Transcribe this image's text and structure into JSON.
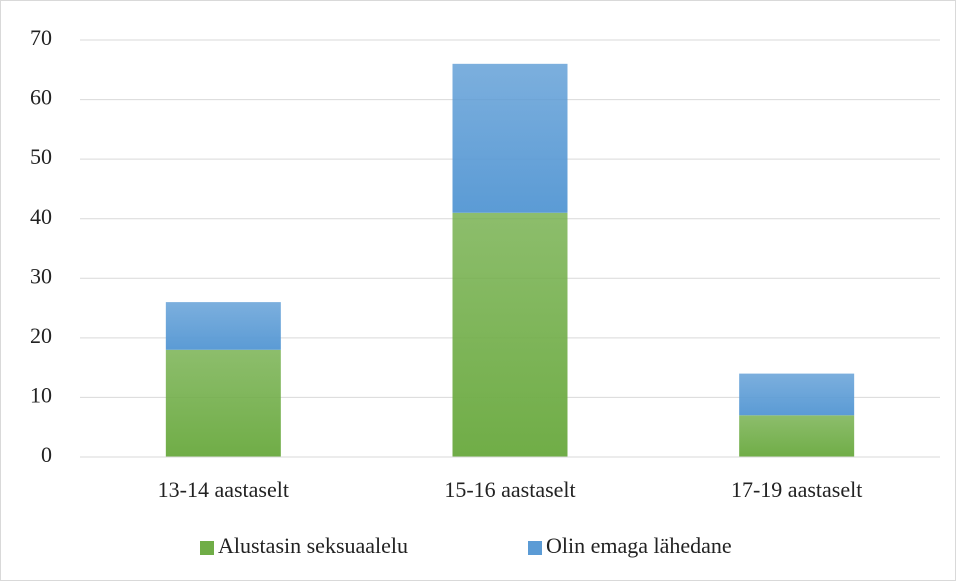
{
  "chart_data": {
    "type": "stacked_bar",
    "categories": [
      "13-14 aastaselt",
      "15-16 aastaselt",
      "17-19 aastaselt"
    ],
    "series": [
      {
        "name": "Alustasin seksuaalelu",
        "color": "#70ad47",
        "values": [
          18,
          41,
          7
        ]
      },
      {
        "name": "Olin emaga lähedane",
        "color": "#5b9bd5",
        "values": [
          8,
          25,
          7
        ]
      }
    ],
    "ylim": [
      0,
      70
    ],
    "yticks": [
      0,
      10,
      20,
      30,
      40,
      50,
      60,
      70
    ],
    "grid": true,
    "legend": "bottom"
  }
}
